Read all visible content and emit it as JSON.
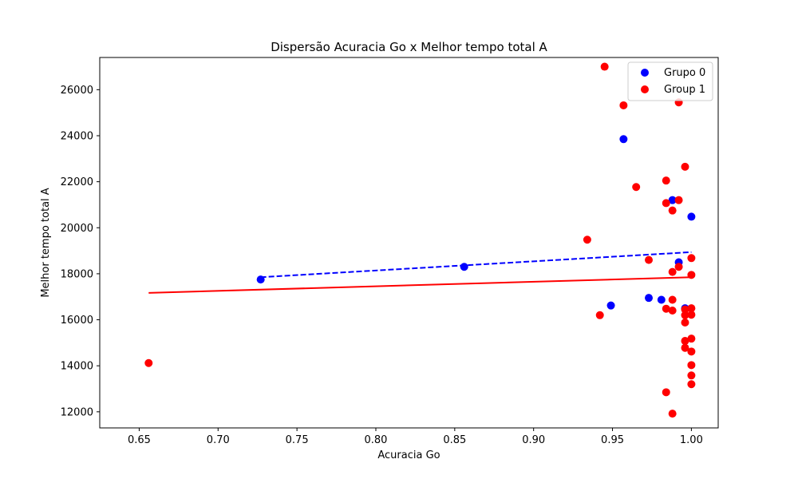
{
  "chart_data": {
    "type": "scatter",
    "title": "Dispersão Acuracia Go x Melhor tempo total A",
    "xlabel": "Acuracia Go",
    "ylabel": "Melhor tempo total A",
    "xlim": [
      0.625,
      1.017
    ],
    "ylim": [
      11300,
      27400
    ],
    "xticks": [
      0.65,
      0.7,
      0.75,
      0.8,
      0.85,
      0.9,
      0.95,
      1.0
    ],
    "xtick_labels": [
      "0.65",
      "0.70",
      "0.75",
      "0.80",
      "0.85",
      "0.90",
      "0.95",
      "1.00"
    ],
    "yticks": [
      12000,
      14000,
      16000,
      18000,
      20000,
      22000,
      24000,
      26000
    ],
    "ytick_labels": [
      "12000",
      "14000",
      "16000",
      "18000",
      "20000",
      "22000",
      "24000",
      "26000"
    ],
    "grid": false,
    "legend_position": "top-right",
    "series": [
      {
        "name": "Grupo 0",
        "color": "#0000ff",
        "points": [
          [
            0.727,
            17750
          ],
          [
            0.856,
            18300
          ],
          [
            0.949,
            16620
          ],
          [
            0.957,
            23850
          ],
          [
            0.973,
            16950
          ],
          [
            0.981,
            16870
          ],
          [
            0.988,
            21200
          ],
          [
            0.992,
            18500
          ],
          [
            0.996,
            16500
          ],
          [
            1.0,
            20480
          ]
        ],
        "trend": {
          "line_style": "dashed",
          "x": [
            0.727,
            1.0
          ],
          "y": [
            17850,
            18940
          ]
        }
      },
      {
        "name": "Group 1",
        "color": "#ff0000",
        "points": [
          [
            0.656,
            14120
          ],
          [
            0.934,
            19480
          ],
          [
            0.942,
            16200
          ],
          [
            0.945,
            27000
          ],
          [
            0.957,
            25320
          ],
          [
            0.965,
            21770
          ],
          [
            0.973,
            18600
          ],
          [
            0.984,
            22050
          ],
          [
            0.984,
            21070
          ],
          [
            0.984,
            16480
          ],
          [
            0.984,
            12850
          ],
          [
            0.988,
            20750
          ],
          [
            0.988,
            18080
          ],
          [
            0.988,
            16870
          ],
          [
            0.988,
            16400
          ],
          [
            0.988,
            11920
          ],
          [
            0.992,
            25450
          ],
          [
            0.992,
            21200
          ],
          [
            0.992,
            18300
          ],
          [
            0.996,
            22650
          ],
          [
            0.996,
            16450
          ],
          [
            0.996,
            16200
          ],
          [
            0.996,
            15880
          ],
          [
            0.996,
            15080
          ],
          [
            0.996,
            14780
          ],
          [
            1.0,
            18680
          ],
          [
            1.0,
            17950
          ],
          [
            1.0,
            16500
          ],
          [
            1.0,
            16220
          ],
          [
            1.0,
            15180
          ],
          [
            1.0,
            14620
          ],
          [
            1.0,
            14030
          ],
          [
            1.0,
            13580
          ],
          [
            1.0,
            13200
          ]
        ],
        "trend": {
          "line_style": "solid",
          "x": [
            0.656,
            1.0
          ],
          "y": [
            17170,
            17850
          ]
        }
      }
    ]
  }
}
